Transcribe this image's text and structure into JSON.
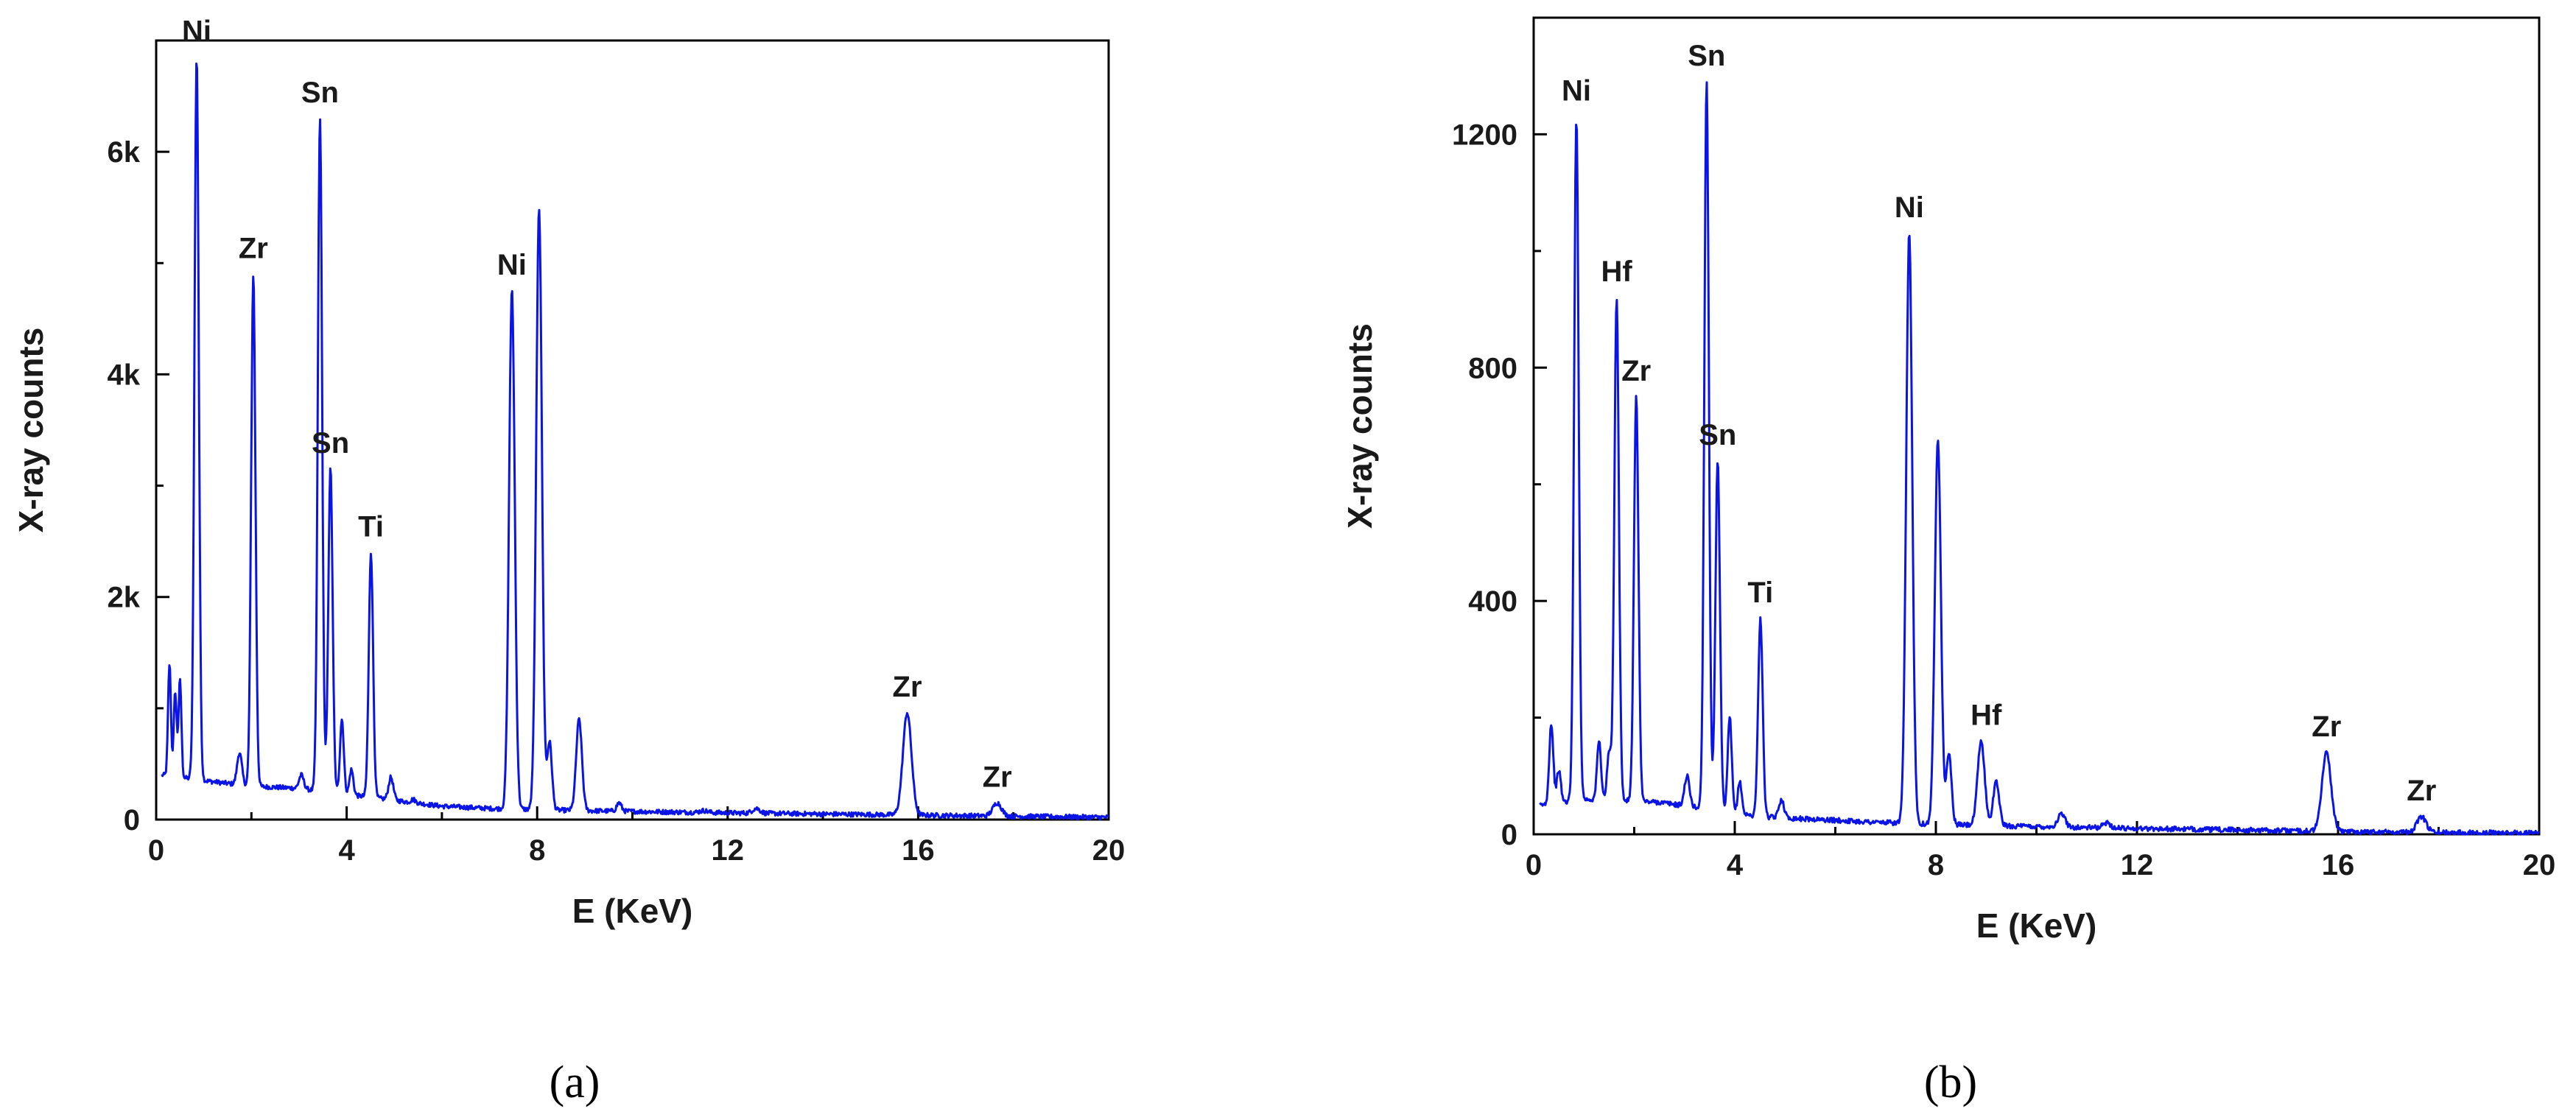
{
  "chart_data": [
    {
      "panel": "(a)",
      "type": "line",
      "xlabel": "E (KeV)",
      "ylabel": "X-ray counts",
      "xlim": [
        0,
        20
      ],
      "ylim": [
        0,
        7000
      ],
      "x_ticks": [
        0,
        4,
        8,
        12,
        16,
        20
      ],
      "x_tick_labels": [
        "0",
        "4",
        "8",
        "12",
        "16",
        "20"
      ],
      "y_ticks": [
        0,
        2000,
        4000,
        6000
      ],
      "y_tick_labels": [
        "0",
        "2k",
        "4k",
        "6k"
      ],
      "color": "#0a14e6",
      "baseline": [
        [
          0.15,
          400
        ],
        [
          1.0,
          350
        ],
        [
          2.0,
          300
        ],
        [
          3.0,
          280
        ],
        [
          4.5,
          200
        ],
        [
          6.0,
          120
        ],
        [
          7.0,
          100
        ],
        [
          9.0,
          80
        ],
        [
          12.0,
          60
        ],
        [
          16.0,
          40
        ],
        [
          20.0,
          20
        ]
      ],
      "peaks": [
        {
          "x": 0.28,
          "y": 1400,
          "w": 0.03
        },
        {
          "x": 0.4,
          "y": 1150,
          "w": 0.03
        },
        {
          "x": 0.5,
          "y": 1250,
          "w": 0.03
        },
        {
          "x": 0.85,
          "y": 6850,
          "w": 0.045
        },
        {
          "x": 1.75,
          "y": 600,
          "w": 0.05
        },
        {
          "x": 2.04,
          "y": 4900,
          "w": 0.045
        },
        {
          "x": 3.05,
          "y": 400,
          "w": 0.05
        },
        {
          "x": 3.44,
          "y": 6300,
          "w": 0.045
        },
        {
          "x": 3.66,
          "y": 3150,
          "w": 0.045
        },
        {
          "x": 3.9,
          "y": 900,
          "w": 0.04
        },
        {
          "x": 4.1,
          "y": 450,
          "w": 0.04
        },
        {
          "x": 4.51,
          "y": 2400,
          "w": 0.045
        },
        {
          "x": 4.93,
          "y": 380,
          "w": 0.05
        },
        {
          "x": 5.4,
          "y": 180,
          "w": 0.05
        },
        {
          "x": 7.47,
          "y": 4750,
          "w": 0.06
        },
        {
          "x": 8.04,
          "y": 5500,
          "w": 0.06
        },
        {
          "x": 8.26,
          "y": 700,
          "w": 0.05
        },
        {
          "x": 8.88,
          "y": 900,
          "w": 0.06
        },
        {
          "x": 9.72,
          "y": 150,
          "w": 0.05
        },
        {
          "x": 11.5,
          "y": 80,
          "w": 0.08
        },
        {
          "x": 12.6,
          "y": 100,
          "w": 0.08
        },
        {
          "x": 15.77,
          "y": 960,
          "w": 0.09
        },
        {
          "x": 17.66,
          "y": 150,
          "w": 0.09
        }
      ],
      "annotations": [
        {
          "text": "Ni",
          "x": 0.85,
          "y": 6850
        },
        {
          "text": "Sn",
          "x": 3.44,
          "y": 6300
        },
        {
          "text": "Zr",
          "x": 2.04,
          "y": 4900
        },
        {
          "text": "Sn",
          "x": 3.66,
          "y": 3150
        },
        {
          "text": "Ti",
          "x": 4.51,
          "y": 2400
        },
        {
          "text": "Ni",
          "x": 7.47,
          "y": 4750
        },
        {
          "text": "Zr",
          "x": 15.77,
          "y": 960
        },
        {
          "text": "Zr",
          "x": 17.66,
          "y": 150
        }
      ]
    },
    {
      "panel": "(b)",
      "type": "line",
      "xlabel": "E (KeV)",
      "ylabel": "X-ray counts",
      "xlim": [
        0,
        20
      ],
      "ylim": [
        0,
        1400
      ],
      "x_ticks": [
        0,
        4,
        8,
        12,
        16,
        20
      ],
      "x_tick_labels": [
        "0",
        "4",
        "8",
        "12",
        "16",
        "20"
      ],
      "y_ticks": [
        0,
        400,
        800,
        1200
      ],
      "y_tick_labels": [
        "0",
        "400",
        "800",
        "1200"
      ],
      "color": "#0a14e6",
      "baseline": [
        [
          0.15,
          50
        ],
        [
          1.0,
          60
        ],
        [
          2.5,
          55
        ],
        [
          4.5,
          30
        ],
        [
          7.0,
          20
        ],
        [
          9.0,
          15
        ],
        [
          12.0,
          10
        ],
        [
          16.0,
          5
        ],
        [
          20.0,
          2
        ]
      ],
      "peaks": [
        {
          "x": 0.35,
          "y": 190,
          "w": 0.04
        },
        {
          "x": 0.5,
          "y": 110,
          "w": 0.04
        },
        {
          "x": 0.85,
          "y": 1230,
          "w": 0.045
        },
        {
          "x": 1.3,
          "y": 160,
          "w": 0.04
        },
        {
          "x": 1.5,
          "y": 140,
          "w": 0.04
        },
        {
          "x": 1.65,
          "y": 920,
          "w": 0.045
        },
        {
          "x": 2.04,
          "y": 750,
          "w": 0.045
        },
        {
          "x": 3.05,
          "y": 100,
          "w": 0.05
        },
        {
          "x": 3.44,
          "y": 1290,
          "w": 0.045
        },
        {
          "x": 3.66,
          "y": 640,
          "w": 0.045
        },
        {
          "x": 3.9,
          "y": 200,
          "w": 0.04
        },
        {
          "x": 4.1,
          "y": 90,
          "w": 0.04
        },
        {
          "x": 4.51,
          "y": 370,
          "w": 0.045
        },
        {
          "x": 4.93,
          "y": 60,
          "w": 0.05
        },
        {
          "x": 7.47,
          "y": 1030,
          "w": 0.06
        },
        {
          "x": 8.04,
          "y": 680,
          "w": 0.06
        },
        {
          "x": 8.26,
          "y": 140,
          "w": 0.05
        },
        {
          "x": 8.9,
          "y": 160,
          "w": 0.07
        },
        {
          "x": 9.2,
          "y": 90,
          "w": 0.06
        },
        {
          "x": 10.5,
          "y": 35,
          "w": 0.07
        },
        {
          "x": 11.4,
          "y": 20,
          "w": 0.07
        },
        {
          "x": 15.77,
          "y": 140,
          "w": 0.09
        },
        {
          "x": 17.66,
          "y": 30,
          "w": 0.09
        }
      ],
      "annotations": [
        {
          "text": "Ni",
          "x": 0.85,
          "y": 1230
        },
        {
          "text": "Hf",
          "x": 1.65,
          "y": 920
        },
        {
          "text": "Zr",
          "x": 2.04,
          "y": 750
        },
        {
          "text": "Sn",
          "x": 3.44,
          "y": 1290
        },
        {
          "text": "Sn",
          "x": 3.66,
          "y": 640
        },
        {
          "text": "Ti",
          "x": 4.51,
          "y": 370
        },
        {
          "text": "Ni",
          "x": 7.47,
          "y": 1030
        },
        {
          "text": "Hf",
          "x": 9.0,
          "y": 160
        },
        {
          "text": "Zr",
          "x": 15.77,
          "y": 140
        },
        {
          "text": "Zr",
          "x": 17.66,
          "y": 30
        }
      ]
    }
  ]
}
